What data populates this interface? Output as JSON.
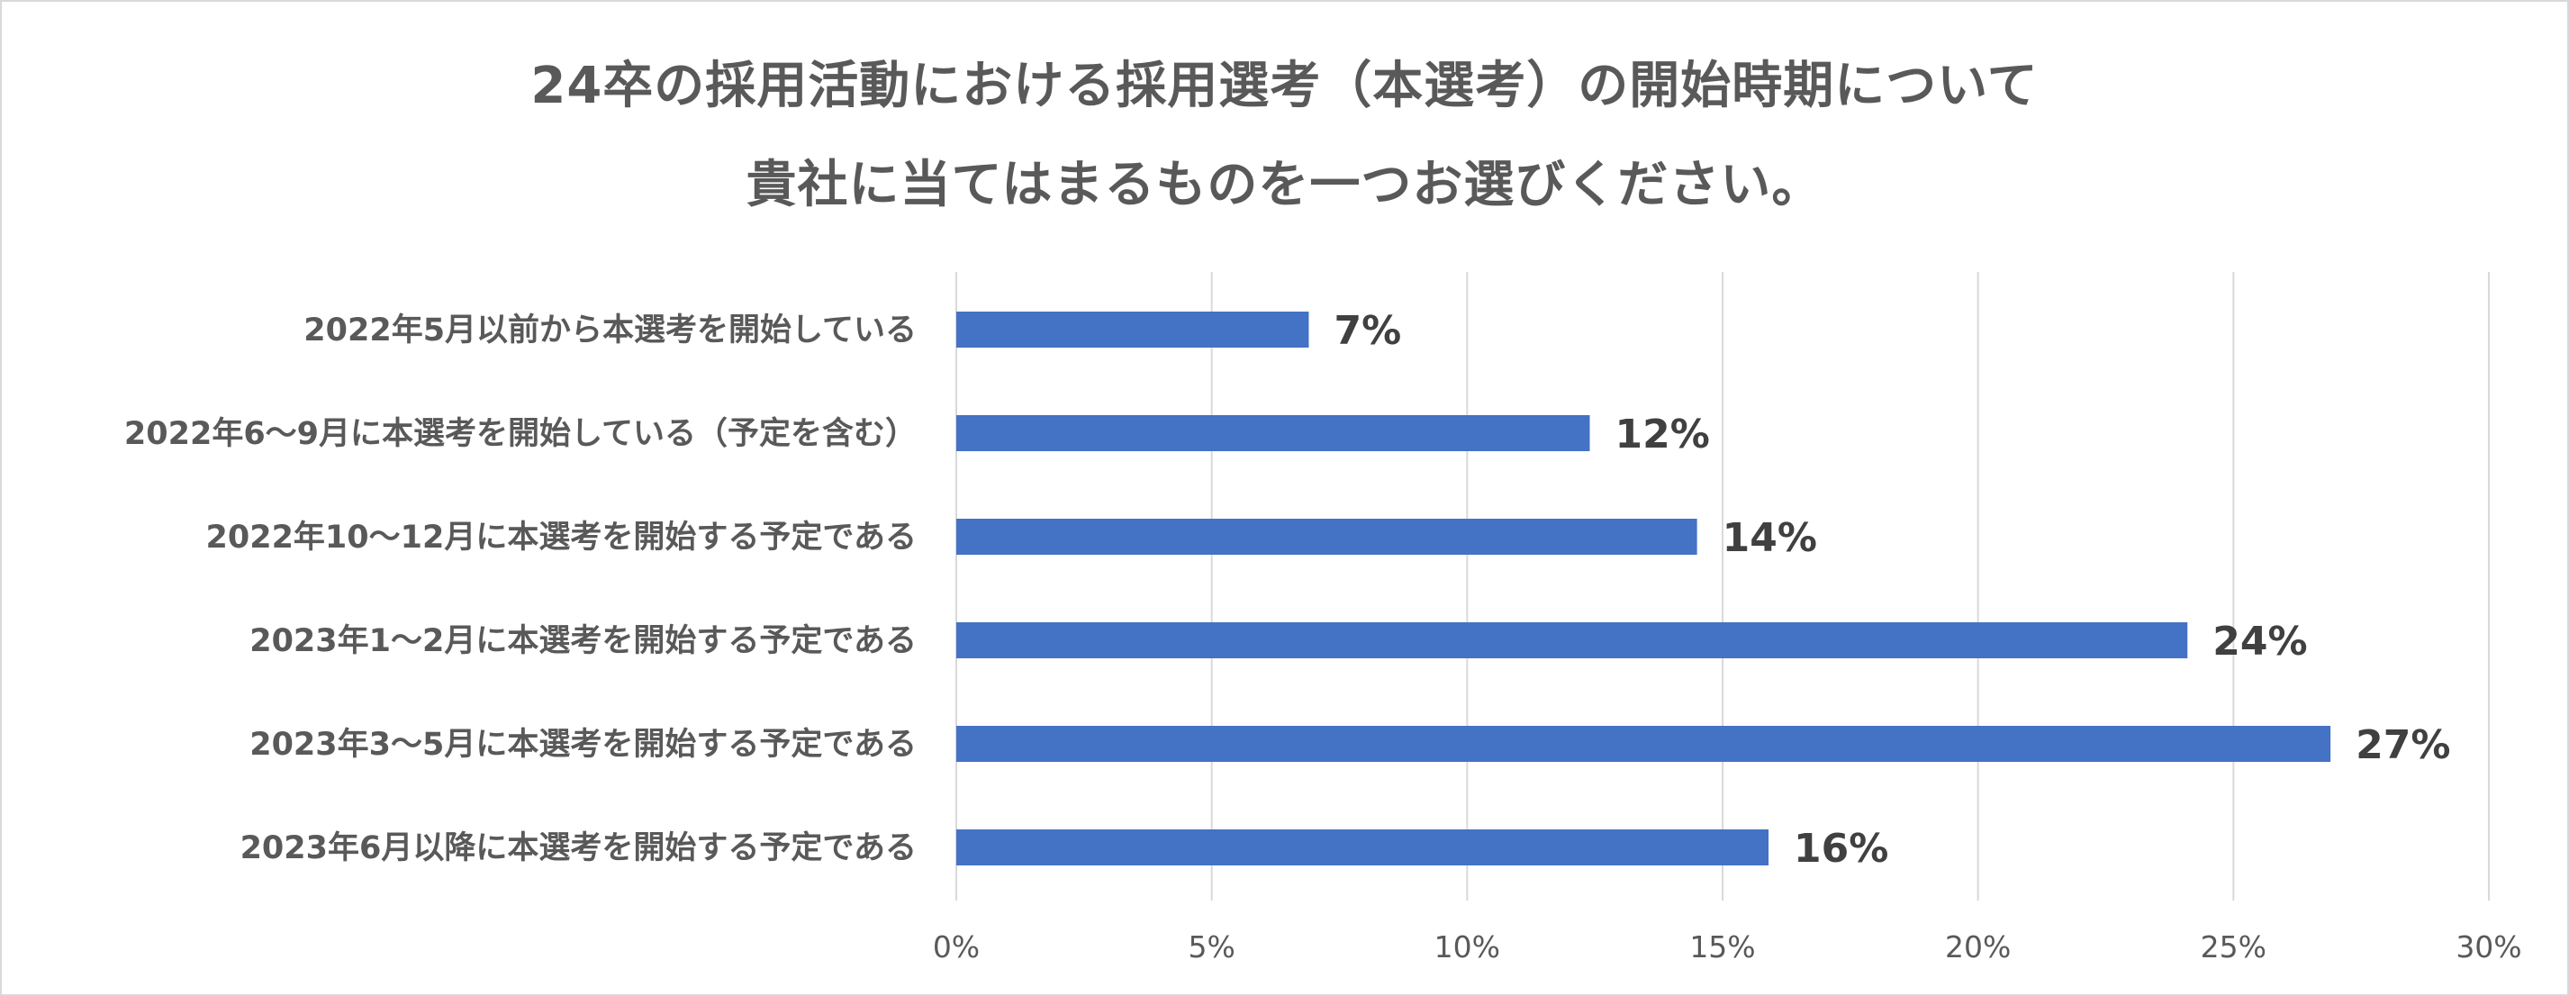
{
  "chart_data": {
    "type": "bar",
    "orientation": "horizontal",
    "title": "24卒の採用活動における採用選考（本選考）の開始時期について",
    "subtitle": "貴社に当てはまるものを一つお選びください。",
    "categories": [
      "2022年5月以前から本選考を開始している",
      "2022年6～9月に本選考を開始している（予定を含む）",
      "2022年10～12月に本選考を開始する予定である",
      "2023年1～2月に本選考を開始する予定である",
      "2023年3～5月に本選考を開始する予定である",
      "2023年6月以降に本選考を開始する予定である"
    ],
    "values": [
      6.9,
      12.4,
      14.5,
      24.1,
      26.9,
      15.9
    ],
    "data_labels": [
      "7%",
      "12%",
      "14%",
      "24%",
      "27%",
      "16%"
    ],
    "xlim": [
      0,
      30
    ],
    "x_ticks": [
      0,
      5,
      10,
      15,
      20,
      25,
      30
    ],
    "x_tick_labels": [
      "0%",
      "5%",
      "10%",
      "15%",
      "20%",
      "25%",
      "30%"
    ],
    "xlabel": "",
    "ylabel": "",
    "grid": "vertical",
    "legend": "none",
    "bar_color": "#4472C4",
    "grid_color": "#d9d9d9"
  }
}
